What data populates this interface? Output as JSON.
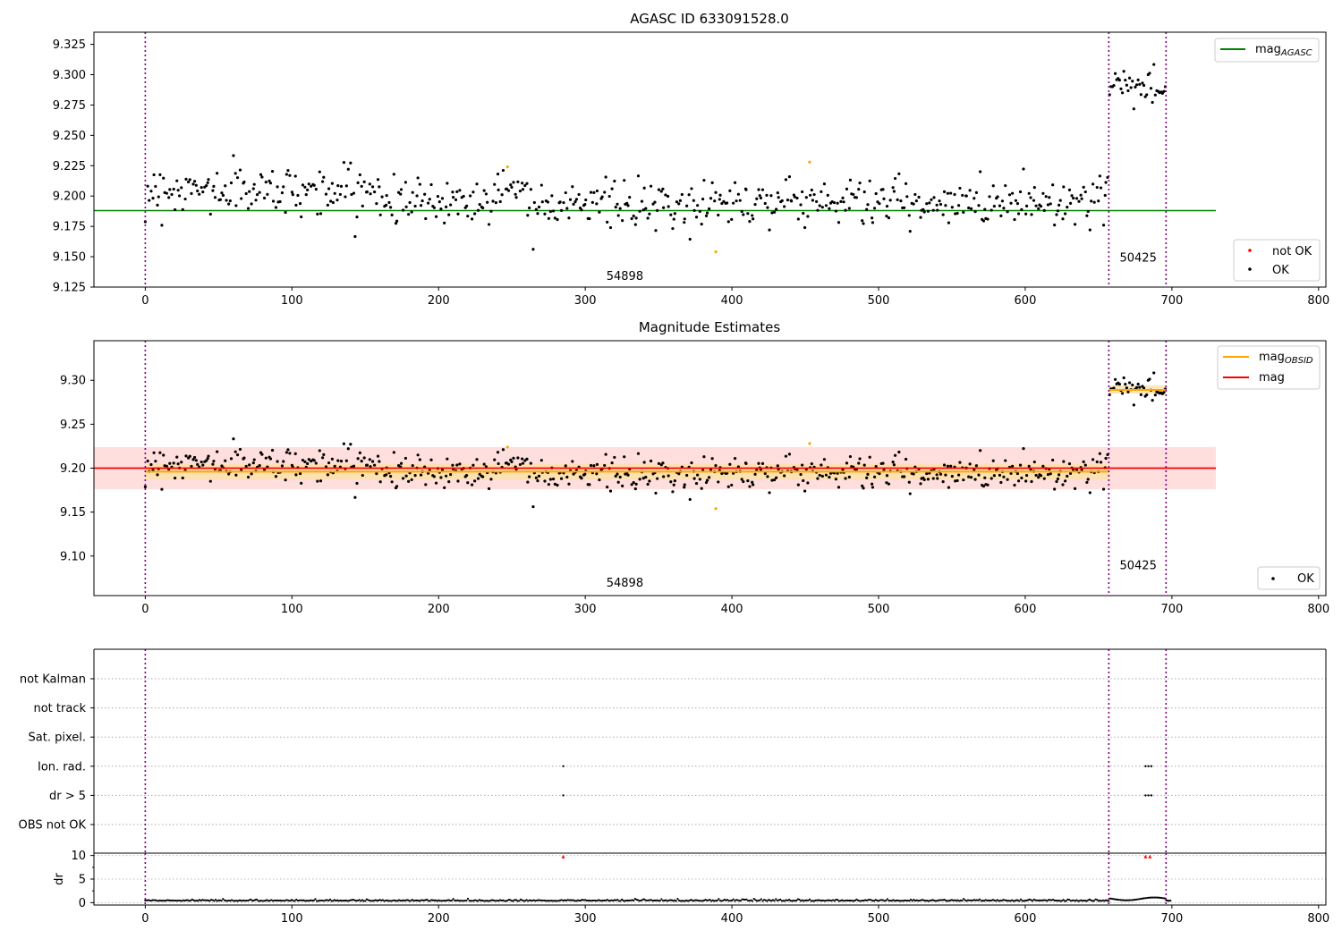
{
  "chart_data": [
    {
      "type": "scatter",
      "title": "AGASC ID 633091528.0",
      "xlim": [
        -35,
        805
      ],
      "ylim": [
        9.125,
        9.335
      ],
      "xticks": [
        "0",
        "100",
        "200",
        "300",
        "400",
        "500",
        "600",
        "700",
        "800"
      ],
      "yticks": [
        "9.125",
        "9.150",
        "9.175",
        "9.200",
        "9.225",
        "9.250",
        "9.275",
        "9.300",
        "9.325"
      ],
      "vlines": [
        0,
        657,
        696
      ],
      "vline_color": "#800080",
      "annotations": [
        {
          "text": "54898",
          "x": 327,
          "y": 9.134
        },
        {
          "text": "50425",
          "x": 677,
          "y": 9.149
        }
      ],
      "hline": {
        "name": "mag_AGASC",
        "label_main": "mag",
        "label_sub": "AGASC",
        "y": 9.188,
        "x_range": [
          -35,
          730
        ],
        "color": "#008000"
      },
      "legend_top": [
        {
          "label_main": "mag",
          "label_sub": "AGASC",
          "color": "#008000",
          "kind": "line"
        }
      ],
      "legend_bottom": [
        {
          "label": "not OK",
          "color": "#ff0000",
          "kind": "dot"
        },
        {
          "label": "OK",
          "color": "#000000",
          "kind": "dot"
        }
      ],
      "outliers": [
        {
          "x": 247,
          "y": 9.224,
          "color": "#ffa500"
        },
        {
          "x": 389,
          "y": 9.154,
          "color": "#ffa500"
        },
        {
          "x": 453,
          "y": 9.228,
          "color": "#ffa500"
        }
      ],
      "segments": [
        {
          "name": "54898",
          "x_range": [
            0,
            657
          ],
          "mean": 9.196,
          "sd": 0.0095
        },
        {
          "name": "50425",
          "x_range": [
            657,
            696
          ],
          "mean": 9.289,
          "sd": 0.0105
        }
      ]
    },
    {
      "type": "scatter",
      "title": "Magnitude Estimates",
      "xlim": [
        -35,
        805
      ],
      "ylim": [
        9.055,
        9.345
      ],
      "xticks": [
        "0",
        "100",
        "200",
        "300",
        "400",
        "500",
        "600",
        "700",
        "800"
      ],
      "yticks": [
        "9.10",
        "9.15",
        "9.20",
        "9.25",
        "9.30"
      ],
      "vlines": [
        0,
        657,
        696
      ],
      "annotations": [
        {
          "text": "54898",
          "x": 327,
          "y": 9.069
        },
        {
          "text": "50425",
          "x": 677,
          "y": 9.089
        }
      ],
      "mag_line": {
        "y": 9.2,
        "band": [
          9.176,
          9.224
        ],
        "x_range": [
          -35,
          730
        ],
        "color": "#ff0000",
        "band_color": "#ffdede"
      },
      "mag_obsid": [
        {
          "x_range": [
            0,
            657
          ],
          "y": 9.196,
          "band": [
            9.187,
            9.205
          ]
        },
        {
          "x_range": [
            657,
            696
          ],
          "y": 9.289,
          "band": [
            9.285,
            9.294
          ]
        }
      ],
      "legend_top": [
        {
          "label_main": "mag",
          "label_sub": "OBSID",
          "color": "#ffa500",
          "kind": "line"
        },
        {
          "label_main": "mag",
          "label_sub": "",
          "color": "#ff0000",
          "kind": "line"
        }
      ],
      "legend_bottom": [
        {
          "label": "OK",
          "color": "#000000",
          "kind": "dot"
        }
      ]
    },
    {
      "type": "scatter",
      "title": "",
      "xlim": [
        -35,
        805
      ],
      "flag_rows": [
        "not Kalman",
        "not track",
        "Sat. pixel.",
        "Ion. rad.",
        "dr > 5",
        "OBS not OK"
      ],
      "flag_points": [
        {
          "row": "Ion. rad.",
          "x": [
            285,
            682,
            684,
            686
          ]
        },
        {
          "row": "dr > 5",
          "x": [
            285,
            682,
            684,
            686
          ]
        }
      ],
      "vlines": [
        0,
        657,
        696
      ]
    },
    {
      "type": "scatter",
      "title": "",
      "ylabel": "dr",
      "xlim": [
        -35,
        805
      ],
      "ylim": [
        -0.5,
        10.5
      ],
      "xticks": [
        "0",
        "100",
        "200",
        "300",
        "400",
        "500",
        "600",
        "700",
        "800"
      ],
      "yticks": [
        "0",
        "5",
        "10"
      ],
      "high_points": [
        {
          "x": 285,
          "y": 9.8,
          "color": "#ff0000"
        },
        {
          "x": 682,
          "y": 9.8,
          "color": "#ff0000"
        },
        {
          "x": 685,
          "y": 9.8,
          "color": "#ff0000"
        }
      ],
      "vlines": [
        0,
        657,
        696
      ]
    }
  ]
}
